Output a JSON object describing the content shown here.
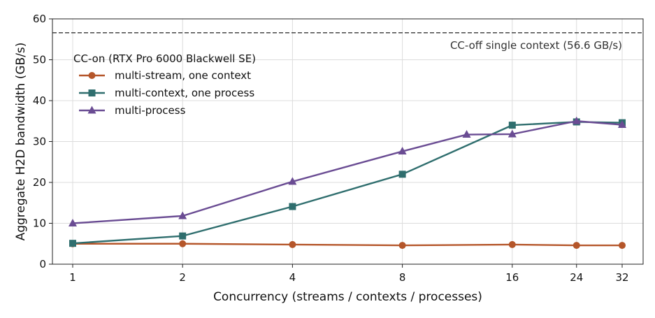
{
  "chart_data": {
    "type": "line",
    "xlabel": "Concurrency (streams / contexts / processes)",
    "ylabel": "Aggregate H2D bandwidth (GB/s)",
    "x_scale": "log2",
    "xlim": [
      1,
      32
    ],
    "ylim": [
      0,
      60
    ],
    "x_ticks": [
      1,
      2,
      4,
      8,
      16,
      24,
      32
    ],
    "x_tick_labels": [
      "1",
      "2",
      "4",
      "8",
      "16",
      "24",
      "32"
    ],
    "y_ticks": [
      0,
      10,
      20,
      30,
      40,
      50,
      60
    ],
    "y_tick_labels": [
      "0",
      "10",
      "20",
      "30",
      "40",
      "50",
      "60"
    ],
    "grid": true,
    "legend": {
      "title": "CC-on (RTX Pro 6000 Blackwell SE)",
      "placement": "top-left"
    },
    "reference_line": {
      "y": 56.6,
      "label": "CC-off single context (56.6 GB/s)",
      "style": "dashed",
      "color": "#222222"
    },
    "series": [
      {
        "name": "multi-stream, one context",
        "marker": "circle",
        "color": "#b5562a",
        "x": [
          1,
          2,
          4,
          8,
          16,
          24,
          32
        ],
        "values": [
          5.0,
          5.0,
          4.8,
          4.6,
          4.8,
          4.6,
          4.6
        ]
      },
      {
        "name": "multi-context, one process",
        "marker": "square",
        "color": "#2f6e6e",
        "x": [
          1,
          2,
          4,
          8,
          16,
          24,
          32
        ],
        "values": [
          5.1,
          6.9,
          14.1,
          22.0,
          34.0,
          34.8,
          34.6
        ]
      },
      {
        "name": "multi-process",
        "marker": "triangle",
        "color": "#6a4c93",
        "x": [
          1,
          2,
          4,
          8,
          12,
          16,
          24,
          32
        ],
        "values": [
          10.0,
          11.8,
          20.2,
          27.6,
          31.7,
          31.8,
          35.0,
          34.1
        ]
      }
    ]
  }
}
